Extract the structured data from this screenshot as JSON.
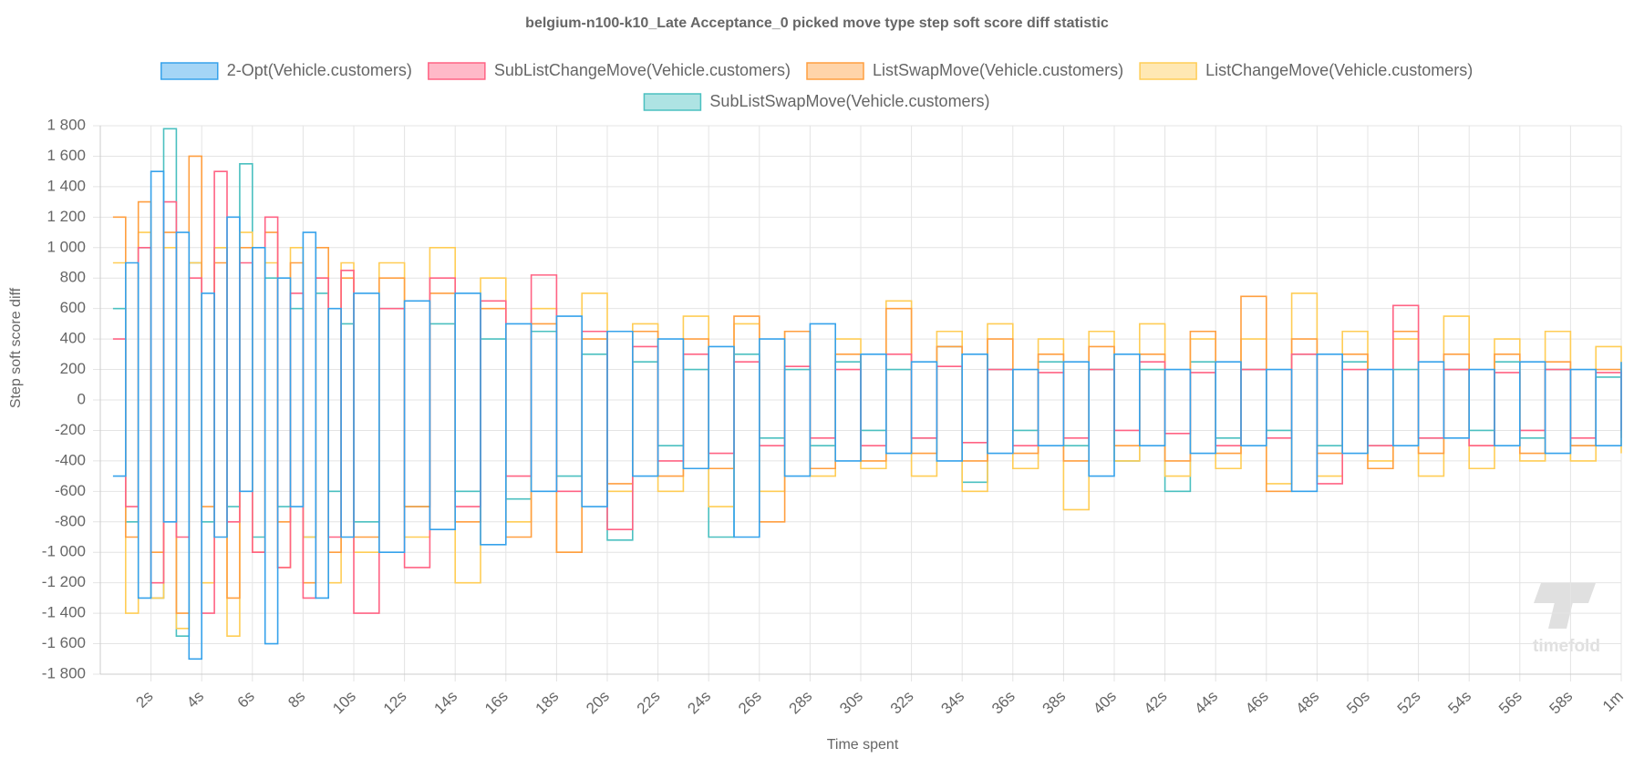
{
  "chart_data": {
    "type": "step-line",
    "title": "belgium-n100-k10_Late Acceptance_0 picked move type step soft score diff statistic",
    "x_label": "Time spent",
    "y_label": "Step soft score diff",
    "watermark": "timefold",
    "grid": true,
    "xlim": [
      0,
      60
    ],
    "ylim": [
      -1800,
      1800
    ],
    "xticks": [
      {
        "value": 2,
        "label": "2s"
      },
      {
        "value": 4,
        "label": "4s"
      },
      {
        "value": 6,
        "label": "6s"
      },
      {
        "value": 8,
        "label": "8s"
      },
      {
        "value": 10,
        "label": "10s"
      },
      {
        "value": 12,
        "label": "12s"
      },
      {
        "value": 14,
        "label": "14s"
      },
      {
        "value": 16,
        "label": "16s"
      },
      {
        "value": 18,
        "label": "18s"
      },
      {
        "value": 20,
        "label": "20s"
      },
      {
        "value": 22,
        "label": "22s"
      },
      {
        "value": 24,
        "label": "24s"
      },
      {
        "value": 26,
        "label": "26s"
      },
      {
        "value": 28,
        "label": "28s"
      },
      {
        "value": 30,
        "label": "30s"
      },
      {
        "value": 32,
        "label": "32s"
      },
      {
        "value": 34,
        "label": "34s"
      },
      {
        "value": 36,
        "label": "36s"
      },
      {
        "value": 38,
        "label": "38s"
      },
      {
        "value": 40,
        "label": "40s"
      },
      {
        "value": 42,
        "label": "42s"
      },
      {
        "value": 44,
        "label": "44s"
      },
      {
        "value": 46,
        "label": "46s"
      },
      {
        "value": 48,
        "label": "48s"
      },
      {
        "value": 50,
        "label": "50s"
      },
      {
        "value": 52,
        "label": "52s"
      },
      {
        "value": 54,
        "label": "54s"
      },
      {
        "value": 56,
        "label": "56s"
      },
      {
        "value": 58,
        "label": "58s"
      },
      {
        "value": 60,
        "label": "1m"
      }
    ],
    "yticks": [
      {
        "value": 1800,
        "label": "1 800"
      },
      {
        "value": 1600,
        "label": "1 600"
      },
      {
        "value": 1400,
        "label": "1 400"
      },
      {
        "value": 1200,
        "label": "1 200"
      },
      {
        "value": 1000,
        "label": "1 000"
      },
      800,
      600,
      400,
      200,
      0,
      -200,
      -400,
      -600,
      -800,
      {
        "value": -1000,
        "label": "-1 000"
      },
      {
        "value": -1200,
        "label": "-1 200"
      },
      {
        "value": -1400,
        "label": "-1 400"
      },
      {
        "value": -1600,
        "label": "-1 600"
      },
      {
        "value": -1800,
        "label": "-1 800"
      }
    ],
    "x": [
      0.5,
      1,
      1.5,
      2,
      2.5,
      3,
      3.5,
      4,
      4.5,
      5,
      5.5,
      6,
      6.5,
      7,
      7.5,
      8,
      8.5,
      9,
      9.5,
      10,
      11,
      12,
      13,
      14,
      15,
      16,
      17,
      18,
      19,
      20,
      21,
      22,
      23,
      24,
      25,
      26,
      27,
      28,
      29,
      30,
      31,
      32,
      33,
      34,
      35,
      36,
      37,
      38,
      39,
      40,
      41,
      42,
      43,
      44,
      45,
      46,
      47,
      48,
      49,
      50,
      51,
      52,
      53,
      54,
      55,
      56,
      57,
      58,
      59,
      60
    ],
    "series": [
      {
        "name": "2-Opt(Vehicle.customers)",
        "color": "#36a2eb",
        "values": [
          -500,
          900,
          -1300,
          1500,
          -800,
          1100,
          -1700,
          700,
          -900,
          1200,
          -600,
          1000,
          -1600,
          800,
          -700,
          1100,
          -1300,
          600,
          -900,
          700,
          -1000,
          650,
          -850,
          700,
          -950,
          500,
          -600,
          550,
          -700,
          450,
          -500,
          400,
          -450,
          350,
          -900,
          400,
          -500,
          500,
          -400,
          300,
          -350,
          250,
          -400,
          300,
          -350,
          200,
          -300,
          250,
          -500,
          300,
          -300,
          200,
          -350,
          250,
          -300,
          200,
          -600,
          300,
          -350,
          200,
          -300,
          250,
          -250,
          200,
          -300,
          250,
          -350,
          200,
          -300,
          250
        ]
      },
      {
        "name": "SubListChangeMove(Vehicle.customers)",
        "color": "#ff6384",
        "values": [
          400,
          -700,
          1000,
          -1200,
          1300,
          -900,
          800,
          -1400,
          1500,
          -800,
          900,
          -1000,
          1200,
          -1100,
          700,
          -1300,
          800,
          -900,
          850,
          -1400,
          600,
          -1100,
          800,
          -700,
          650,
          -500,
          820,
          -600,
          450,
          -850,
          350,
          -400,
          300,
          -350,
          250,
          -300,
          220,
          -250,
          200,
          -300,
          300,
          -250,
          220,
          -280,
          200,
          -300,
          180,
          -250,
          200,
          -200,
          250,
          -220,
          180,
          -300,
          200,
          -250,
          300,
          -550,
          200,
          -300,
          620,
          -250,
          200,
          -300,
          180,
          -200,
          200,
          -250,
          180,
          -200
        ]
      },
      {
        "name": "ListSwapMove(Vehicle.customers)",
        "color": "#ff9f40",
        "values": [
          1200,
          -900,
          1300,
          -1000,
          1100,
          -1400,
          1600,
          -700,
          900,
          -1300,
          1000,
          -1000,
          1100,
          -800,
          900,
          -1200,
          1000,
          -1000,
          800,
          -900,
          800,
          -700,
          700,
          -800,
          600,
          -900,
          500,
          -1000,
          400,
          -550,
          450,
          -500,
          400,
          -450,
          550,
          -800,
          450,
          -450,
          300,
          -400,
          600,
          -350,
          350,
          -400,
          400,
          -350,
          300,
          -400,
          350,
          -300,
          300,
          -400,
          450,
          -350,
          680,
          -600,
          400,
          -350,
          300,
          -450,
          450,
          -350,
          300,
          -300,
          300,
          -350,
          250,
          -300,
          200,
          -250
        ]
      },
      {
        "name": "ListChangeMove(Vehicle.customers)",
        "color": "#ffcd56",
        "values": [
          900,
          -1400,
          1100,
          -1300,
          1000,
          -1500,
          900,
          -1200,
          1000,
          -1550,
          1100,
          -1000,
          900,
          -1100,
          1000,
          -900,
          800,
          -1200,
          900,
          -1000,
          900,
          -900,
          1000,
          -1200,
          800,
          -800,
          600,
          -1000,
          700,
          -600,
          500,
          -600,
          550,
          -700,
          500,
          -600,
          450,
          -500,
          400,
          -450,
          650,
          -500,
          450,
          -600,
          500,
          -450,
          400,
          -720,
          450,
          -400,
          500,
          -500,
          400,
          -450,
          400,
          -550,
          700,
          -500,
          450,
          -400,
          400,
          -500,
          550,
          -450,
          400,
          -400,
          450,
          -400,
          350,
          -350
        ]
      },
      {
        "name": "SubListSwapMove(Vehicle.customers)",
        "color": "#4bc0c0",
        "values": [
          600,
          -800,
          1000,
          -1300,
          1780,
          -1550,
          900,
          -800,
          1000,
          -700,
          1550,
          -900,
          800,
          -700,
          600,
          -900,
          700,
          -600,
          500,
          -800,
          600,
          -700,
          500,
          -600,
          400,
          -650,
          450,
          -500,
          300,
          -920,
          250,
          -300,
          200,
          -900,
          300,
          -250,
          200,
          -300,
          250,
          -200,
          200,
          -250,
          350,
          -540,
          200,
          -200,
          250,
          -300,
          200,
          -400,
          200,
          -600,
          250,
          -250,
          200,
          -200,
          300,
          -300,
          250,
          -300,
          200,
          -250,
          200,
          -200,
          250,
          -250,
          200,
          -300,
          150,
          -200
        ]
      }
    ]
  }
}
